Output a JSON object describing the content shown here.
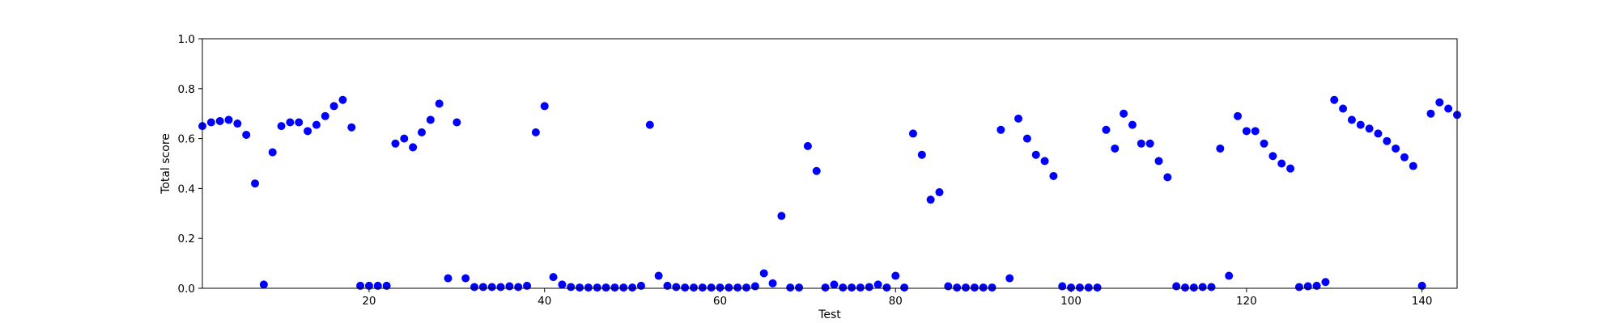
{
  "chart_data": {
    "type": "scatter",
    "title": "",
    "xlabel": "Test",
    "ylabel": "Total score",
    "xlim": [
      1,
      144
    ],
    "ylim": [
      0.0,
      1.0
    ],
    "x_ticks": [
      20,
      40,
      60,
      80,
      100,
      120,
      140
    ],
    "x_tick_labels": [
      "20",
      "40",
      "60",
      "80",
      "100",
      "120",
      "140"
    ],
    "y_ticks": [
      0.0,
      0.2,
      0.4,
      0.6,
      0.8,
      1.0
    ],
    "y_tick_labels": [
      "0.0",
      "0.2",
      "0.4",
      "0.6",
      "0.8",
      "1.0"
    ],
    "grid": false,
    "marker_color": "#0000ff",
    "series": [
      {
        "x": [
          1,
          2,
          3,
          4,
          5,
          6,
          7,
          8,
          9,
          10,
          11,
          12,
          13,
          14,
          15,
          16,
          17,
          18,
          19,
          20,
          21,
          22,
          23,
          24,
          25,
          26,
          27,
          28,
          29,
          30,
          31,
          32,
          33,
          34,
          35,
          36,
          37,
          38,
          39,
          40,
          41,
          42,
          43,
          44,
          45,
          46,
          47,
          48,
          49,
          50,
          51,
          52,
          53,
          54,
          55,
          56,
          57,
          58,
          59,
          60,
          61,
          62,
          63,
          64,
          65,
          66,
          67,
          68,
          69,
          70,
          71,
          72,
          73,
          74,
          75,
          76,
          77,
          78,
          79,
          80,
          81,
          82,
          83,
          84,
          85,
          86,
          87,
          88,
          89,
          90,
          91,
          92,
          93,
          94,
          95,
          96,
          97,
          98,
          99,
          100,
          101,
          102,
          103,
          104,
          105,
          106,
          107,
          108,
          109,
          110,
          111,
          112,
          113,
          114,
          115,
          116,
          117,
          118,
          119,
          120,
          121,
          122,
          123,
          124,
          125,
          126,
          127,
          128,
          129,
          130,
          131,
          132,
          133,
          134,
          135,
          136,
          137,
          138,
          139,
          140,
          141,
          142,
          143,
          144
        ],
        "y": [
          0.65,
          0.665,
          0.67,
          0.675,
          0.66,
          0.615,
          0.42,
          0.015,
          0.545,
          0.65,
          0.665,
          0.665,
          0.63,
          0.655,
          0.69,
          0.73,
          0.755,
          0.645,
          0.01,
          0.01,
          0.01,
          0.01,
          0.58,
          0.6,
          0.565,
          0.625,
          0.675,
          0.74,
          0.04,
          0.665,
          0.04,
          0.005,
          0.005,
          0.005,
          0.005,
          0.008,
          0.005,
          0.01,
          0.625,
          0.73,
          0.045,
          0.015,
          0.005,
          0.003,
          0.003,
          0.003,
          0.003,
          0.003,
          0.003,
          0.003,
          0.01,
          0.655,
          0.05,
          0.01,
          0.005,
          0.003,
          0.003,
          0.003,
          0.003,
          0.003,
          0.003,
          0.003,
          0.003,
          0.008,
          0.06,
          0.02,
          0.29,
          0.003,
          0.003,
          0.57,
          0.47,
          0.003,
          0.015,
          0.003,
          0.003,
          0.003,
          0.005,
          0.015,
          0.003,
          0.05,
          0.003,
          0.62,
          0.535,
          0.355,
          0.385,
          0.008,
          0.003,
          0.003,
          0.003,
          0.003,
          0.003,
          0.635,
          0.04,
          0.68,
          0.6,
          0.535,
          0.51,
          0.45,
          0.008,
          0.003,
          0.003,
          0.003,
          0.003,
          0.635,
          0.56,
          0.7,
          0.655,
          0.58,
          0.58,
          0.51,
          0.445,
          0.008,
          0.003,
          0.003,
          0.005,
          0.005,
          0.56,
          0.05,
          0.69,
          0.63,
          0.63,
          0.58,
          0.53,
          0.5,
          0.48,
          0.005,
          0.008,
          0.01,
          0.025,
          0.755,
          0.72,
          0.675,
          0.655,
          0.64,
          0.62,
          0.59,
          0.56,
          0.525,
          0.49,
          0.01,
          0.7,
          0.745,
          0.72,
          0.695
        ]
      }
    ]
  }
}
